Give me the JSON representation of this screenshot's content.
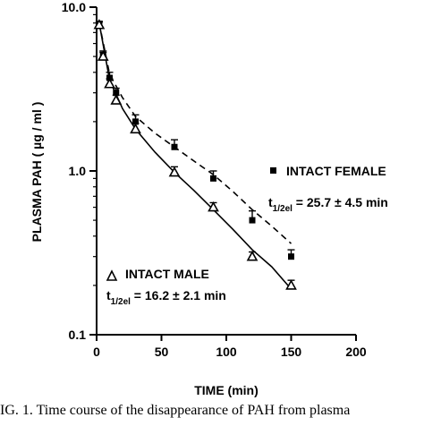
{
  "chart_data": {
    "type": "scatter",
    "xlabel": "TIME (min)",
    "ylabel": "PLASMA PAH ( µg / ml )",
    "xlim": [
      0,
      200
    ],
    "ylim": [
      0.1,
      10.0
    ],
    "yscale": "log",
    "x_ticks": [
      0,
      50,
      100,
      150,
      200
    ],
    "x_tick_labels": [
      "0",
      "50",
      "100",
      "150",
      "200"
    ],
    "y_ticks": [
      0.1,
      1.0,
      10.0
    ],
    "y_tick_labels": [
      "0.1",
      "1.0",
      "10.0"
    ],
    "series": [
      {
        "name": "INTACT FEMALE",
        "marker": "square",
        "annotation_prefix": "t",
        "annotation_subscript": "1/2el",
        "annotation_suffix": " = 25.7 ± 4.5 min",
        "line_style": "dashed",
        "points": [
          {
            "x": 2,
            "y": 7.9,
            "err": 0.3
          },
          {
            "x": 5,
            "y": 5.1,
            "err": 0.3
          },
          {
            "x": 10,
            "y": 3.7,
            "err": 0.3
          },
          {
            "x": 15,
            "y": 3.0,
            "err": 0.2
          },
          {
            "x": 30,
            "y": 2.0,
            "err": 0.2
          },
          {
            "x": 60,
            "y": 1.4,
            "err": 0.15
          },
          {
            "x": 90,
            "y": 0.9,
            "err": 0.1
          },
          {
            "x": 120,
            "y": 0.5,
            "err": 0.07
          },
          {
            "x": 150,
            "y": 0.3,
            "err": 0.03
          }
        ],
        "fit": [
          [
            2,
            8.0
          ],
          [
            10,
            3.9
          ],
          [
            20,
            2.8
          ],
          [
            30,
            2.15
          ],
          [
            45,
            1.7
          ],
          [
            60,
            1.4
          ],
          [
            75,
            1.15
          ],
          [
            90,
            0.95
          ],
          [
            105,
            0.75
          ],
          [
            120,
            0.58
          ],
          [
            135,
            0.46
          ],
          [
            150,
            0.36
          ]
        ]
      },
      {
        "name": "INTACT MALE",
        "marker": "triangle-open",
        "annotation_prefix": "t",
        "annotation_subscript": "1/2el",
        "annotation_suffix": " = 16.2 ± 2.1 min",
        "line_style": "solid",
        "points": [
          {
            "x": 2,
            "y": 7.8,
            "err": 0.3
          },
          {
            "x": 5,
            "y": 5.0,
            "err": 0.3
          },
          {
            "x": 10,
            "y": 3.4,
            "err": 0.25
          },
          {
            "x": 15,
            "y": 2.7,
            "err": 0.2
          },
          {
            "x": 30,
            "y": 1.8,
            "err": 0.15
          },
          {
            "x": 60,
            "y": 0.98,
            "err": 0.08
          },
          {
            "x": 90,
            "y": 0.6,
            "err": 0.04
          },
          {
            "x": 120,
            "y": 0.3,
            "err": 0.02
          },
          {
            "x": 150,
            "y": 0.2,
            "err": 0.015
          }
        ],
        "fit": [
          [
            2,
            8.0
          ],
          [
            10,
            3.6
          ],
          [
            20,
            2.4
          ],
          [
            30,
            1.8
          ],
          [
            45,
            1.3
          ],
          [
            60,
            0.98
          ],
          [
            75,
            0.76
          ],
          [
            90,
            0.58
          ],
          [
            105,
            0.44
          ],
          [
            120,
            0.33
          ],
          [
            135,
            0.26
          ],
          [
            150,
            0.19
          ]
        ]
      }
    ]
  },
  "caption": "IG. 1. Time course of the disappearance of PAH from plasma"
}
